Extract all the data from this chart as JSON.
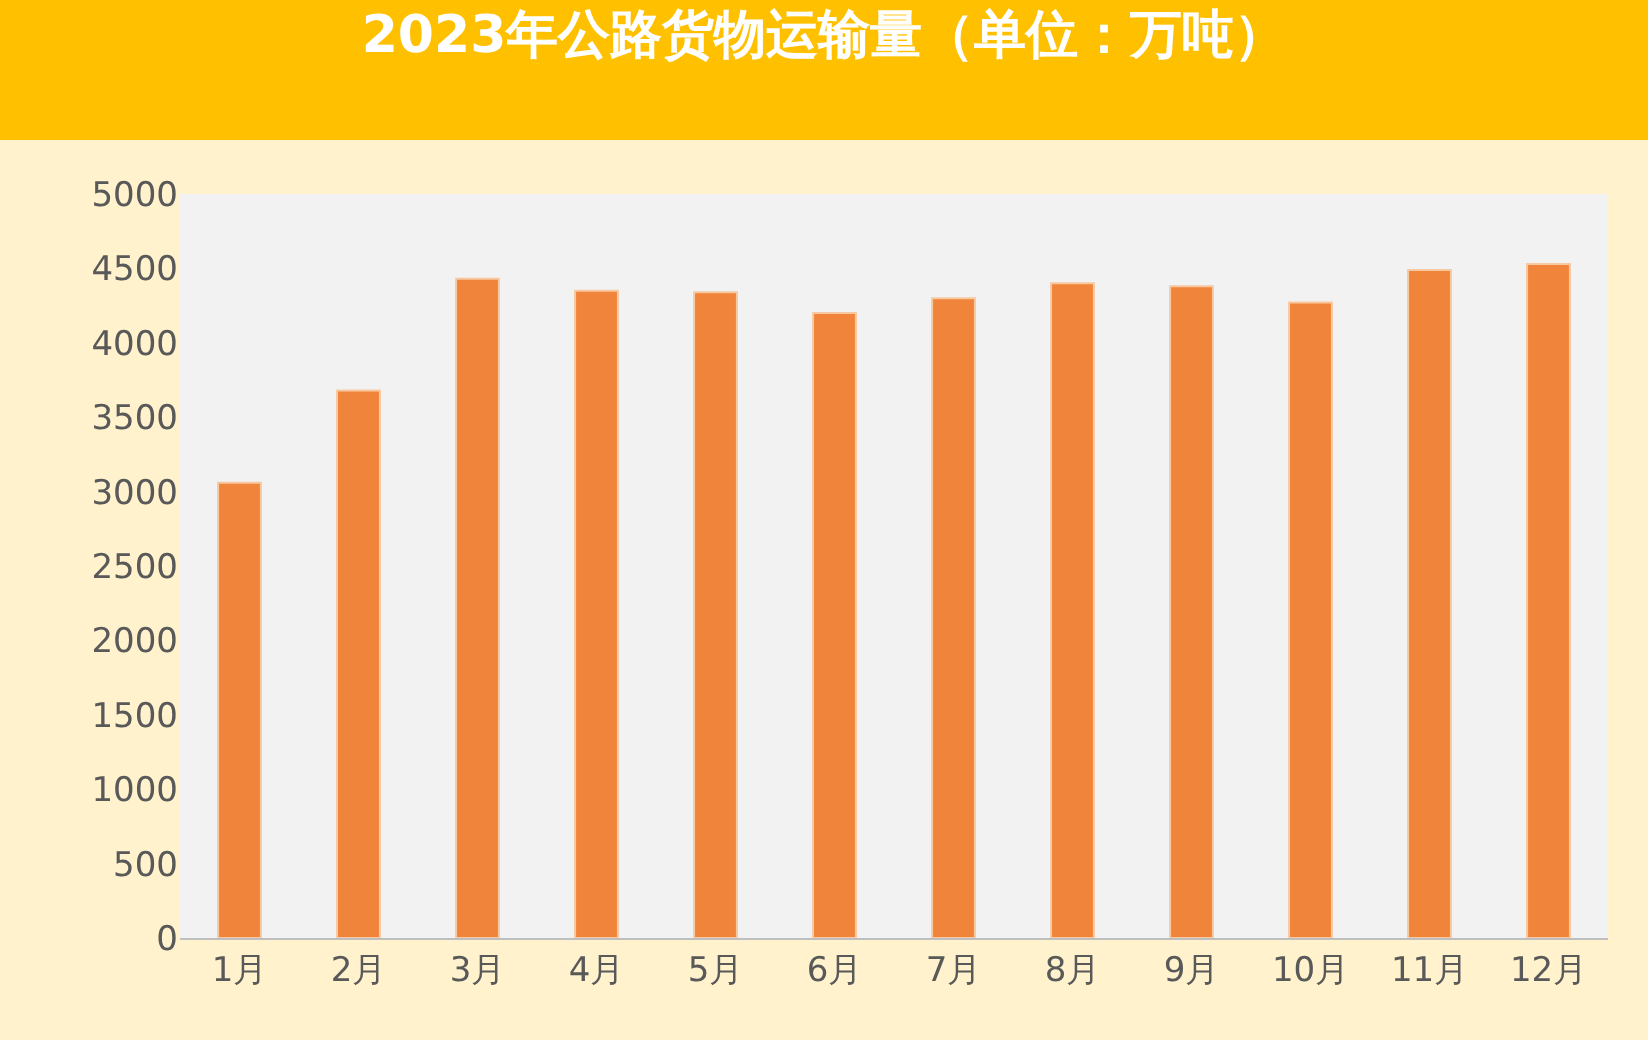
{
  "chart_data": {
    "type": "bar",
    "title": "2023年公路货物运输量（单位：万吨）",
    "categories": [
      "1月",
      "2月",
      "3月",
      "4月",
      "5月",
      "6月",
      "7月",
      "8月",
      "9月",
      "10月",
      "11月",
      "12月"
    ],
    "values": [
      3060,
      3680,
      4430,
      4350,
      4340,
      4200,
      4300,
      4400,
      4380,
      4270,
      4490,
      4530
    ],
    "color": "#f0843a",
    "ylim": [
      0,
      5000
    ],
    "yticks": [
      0,
      500,
      1000,
      1500,
      2000,
      2500,
      3000,
      3500,
      4000,
      4500,
      5000
    ],
    "grid": false
  }
}
